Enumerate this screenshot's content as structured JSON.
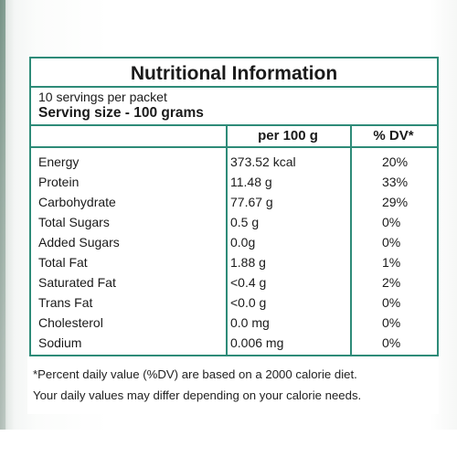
{
  "panel": {
    "title": "Nutritional Information",
    "servings_per_packet": "10 servings per packet",
    "serving_size": "Serving size - 100 grams",
    "columns": {
      "per": "per 100 g",
      "dv": "% DV*"
    },
    "rows": [
      {
        "nutrient": "Energy",
        "amount": "373.52 kcal",
        "dv": "20%"
      },
      {
        "nutrient": "Protein",
        "amount": "11.48 g",
        "dv": "33%"
      },
      {
        "nutrient": "Carbohydrate",
        "amount": "77.67 g",
        "dv": "29%"
      },
      {
        "nutrient": "Total Sugars",
        "amount": "0.5 g",
        "dv": "0%"
      },
      {
        "nutrient": "Added Sugars",
        "amount": "0.0g",
        "dv": "0%"
      },
      {
        "nutrient": "Total Fat",
        "amount": "1.88 g",
        "dv": "1%"
      },
      {
        "nutrient": "Saturated Fat",
        "amount": "<0.4 g",
        "dv": "2%"
      },
      {
        "nutrient": "Trans Fat",
        "amount": "<0.0 g",
        "dv": "0%"
      },
      {
        "nutrient": "Cholesterol",
        "amount": "0.0 mg",
        "dv": "0%"
      },
      {
        "nutrient": "Sodium",
        "amount": "0.006 mg",
        "dv": "0%"
      }
    ]
  },
  "footnote": {
    "line1": "*Percent daily value (%DV) are based on a 2000 calorie diet.",
    "line2": "Your daily values may differ depending on your calorie needs."
  },
  "colors": {
    "border": "#2e8b78",
    "text": "#1a1a1a"
  }
}
